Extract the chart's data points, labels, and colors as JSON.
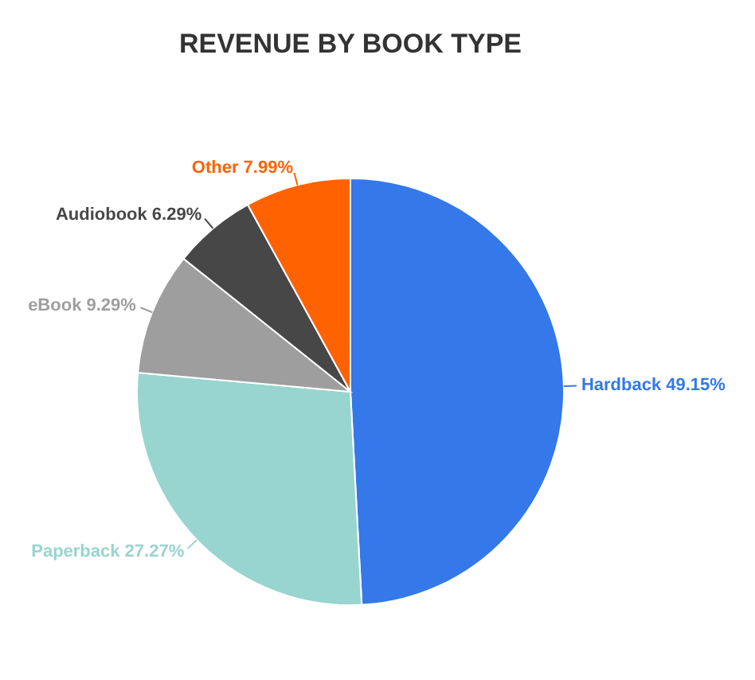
{
  "chart_data": {
    "type": "pie",
    "title": "REVENUE BY BOOK TYPE",
    "categories": [
      "Hardback",
      "Paperback",
      "eBook",
      "Audiobook",
      "Other"
    ],
    "values": [
      49.15,
      27.27,
      9.29,
      6.29,
      7.99
    ],
    "value_labels": [
      "49.15%",
      "27.27%",
      "9.29%",
      "6.29%",
      "7.99%"
    ],
    "colors": [
      "#3478ea",
      "#98d5cf",
      "#9e9e9e",
      "#474747",
      "#ff6200"
    ]
  }
}
